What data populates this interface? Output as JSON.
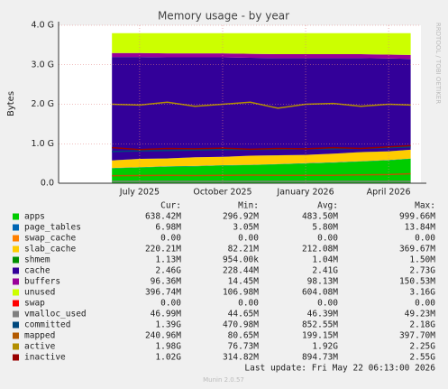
{
  "chart_data": {
    "type": "area",
    "title": "Memory usage - by year",
    "ylabel": "Bytes",
    "side_text": "RRDTOOL / TOBI OETIKER",
    "last_update": "Last update: Fri May 22 06:13:00 2026",
    "footer": "Munin 2.0.57",
    "legend_headers": [
      "Cur:",
      "Min:",
      "Avg:",
      "Max:"
    ],
    "x": [
      6,
      7,
      8,
      9,
      10,
      11,
      12,
      13,
      14,
      15,
      16,
      16.8
    ],
    "xlim": [
      4.07,
      17.17
    ],
    "xticks": [
      {
        "value": 7,
        "label": "July 2025"
      },
      {
        "value": 10,
        "label": "October 2025"
      },
      {
        "value": 13,
        "label": "January 2026"
      },
      {
        "value": 16,
        "label": "April 2026"
      }
    ],
    "ylim": [
      0,
      4000000000
    ],
    "yticks": [
      {
        "value": 0,
        "label": "0.0"
      },
      {
        "value": 1000000000,
        "label": "1.0 G"
      },
      {
        "value": 2000000000,
        "label": "2.0 G"
      },
      {
        "value": 3000000000,
        "label": "3.0 G"
      },
      {
        "value": 4000000000,
        "label": "4.0 G"
      }
    ],
    "grid": true,
    "series": [
      {
        "name": "apps",
        "color": "#00cc00",
        "style": "area",
        "stats": [
          "638.42M",
          "296.92M",
          "483.50M",
          "999.66M"
        ],
        "values": [
          380000000,
          400000000,
          420000000,
          430000000,
          450000000,
          460000000,
          480000000,
          500000000,
          520000000,
          550000000,
          580000000,
          620000000
        ]
      },
      {
        "name": "page_tables",
        "color": "#0066b3",
        "style": "area",
        "stats": [
          "6.98M",
          "3.05M",
          "5.80M",
          "13.84M"
        ],
        "values": [
          7000000,
          7000000,
          7000000,
          7000000,
          7000000,
          7000000,
          7000000,
          7000000,
          7000000,
          7000000,
          7000000,
          7000000
        ]
      },
      {
        "name": "swap_cache",
        "color": "#ff8000",
        "style": "area",
        "stats": [
          "0.00",
          "0.00",
          "0.00",
          "0.00"
        ],
        "values": [
          0,
          0,
          0,
          0,
          0,
          0,
          0,
          0,
          0,
          0,
          0,
          0
        ]
      },
      {
        "name": "slab_cache",
        "color": "#ffcc00",
        "style": "area",
        "stats": [
          "220.21M",
          "82.21M",
          "212.08M",
          "369.67M"
        ],
        "values": [
          190000000,
          210000000,
          200000000,
          220000000,
          210000000,
          230000000,
          220000000,
          210000000,
          220000000,
          230000000,
          220000000,
          220000000
        ]
      },
      {
        "name": "shmem",
        "color": "#008f00",
        "style": "area",
        "stats": [
          "1.13M",
          "954.00k",
          "1.04M",
          "1.50M"
        ],
        "values": [
          1100000,
          1100000,
          1100000,
          1100000,
          1100000,
          1100000,
          1100000,
          1100000,
          1100000,
          1100000,
          1100000,
          1100000
        ]
      },
      {
        "name": "cache",
        "color": "#330099",
        "style": "area",
        "stats": [
          "2.46G",
          "228.44M",
          "2.41G",
          "2.73G"
        ],
        "values": [
          2620000000,
          2580000000,
          2560000000,
          2530000000,
          2520000000,
          2480000000,
          2460000000,
          2450000000,
          2420000000,
          2380000000,
          2350000000,
          2300000000
        ]
      },
      {
        "name": "buffers",
        "color": "#990099",
        "style": "area",
        "stats": [
          "96.36M",
          "14.45M",
          "98.13M",
          "150.53M"
        ],
        "values": [
          100000000,
          100000000,
          100000000,
          100000000,
          100000000,
          100000000,
          100000000,
          100000000,
          100000000,
          100000000,
          100000000,
          100000000
        ]
      },
      {
        "name": "unused",
        "color": "#ccff00",
        "style": "area",
        "stats": [
          "396.74M",
          "106.98M",
          "604.08M",
          "3.16G"
        ],
        "values": [
          501900000,
          501900000,
          511900000,
          511900000,
          511900000,
          521900000,
          531900000,
          531900000,
          531900000,
          531900000,
          541900000,
          551900000
        ]
      },
      {
        "name": "swap",
        "color": "#ff0000",
        "style": "area",
        "stats": [
          "0.00",
          "0.00",
          "0.00",
          "0.00"
        ],
        "values": [
          0,
          0,
          0,
          0,
          0,
          0,
          0,
          0,
          0,
          0,
          0,
          0
        ]
      },
      {
        "name": "vmalloc_used",
        "color": "#808080",
        "style": "line",
        "stats": [
          "46.99M",
          "44.65M",
          "46.39M",
          "49.23M"
        ],
        "values": [
          46000000,
          46000000,
          46000000,
          46000000,
          46000000,
          46000000,
          46000000,
          46000000,
          46000000,
          46000000,
          46000000,
          46000000
        ]
      },
      {
        "name": "committed",
        "color": "#00487d",
        "style": "line",
        "stats": [
          "1.39G",
          "470.98M",
          "852.55M",
          "2.18G"
        ],
        "values": [
          800000000,
          820000000,
          830000000,
          840000000,
          850000000,
          850000000,
          860000000,
          870000000,
          870000000,
          880000000,
          900000000,
          920000000
        ]
      },
      {
        "name": "mapped",
        "color": "#b35a00",
        "style": "line",
        "stats": [
          "240.96M",
          "80.65M",
          "199.15M",
          "397.70M"
        ],
        "values": [
          190000000,
          195000000,
          200000000,
          195000000,
          200000000,
          205000000,
          200000000,
          198000000,
          202000000,
          210000000,
          220000000,
          240000000
        ]
      },
      {
        "name": "active",
        "color": "#b38f00",
        "style": "line",
        "stats": [
          "1.98G",
          "76.73M",
          "1.92G",
          "2.25G"
        ],
        "values": [
          2000000000,
          1980000000,
          2050000000,
          1950000000,
          2000000000,
          2050000000,
          1900000000,
          2000000000,
          2020000000,
          1950000000,
          2000000000,
          1980000000
        ]
      },
      {
        "name": "inactive",
        "color": "#990000",
        "style": "line",
        "stats": [
          "1.02G",
          "314.82M",
          "894.73M",
          "2.55G"
        ],
        "values": [
          900000000,
          850000000,
          880000000,
          870000000,
          890000000,
          860000000,
          880000000,
          870000000,
          900000000,
          880000000,
          920000000,
          950000000
        ]
      }
    ]
  }
}
